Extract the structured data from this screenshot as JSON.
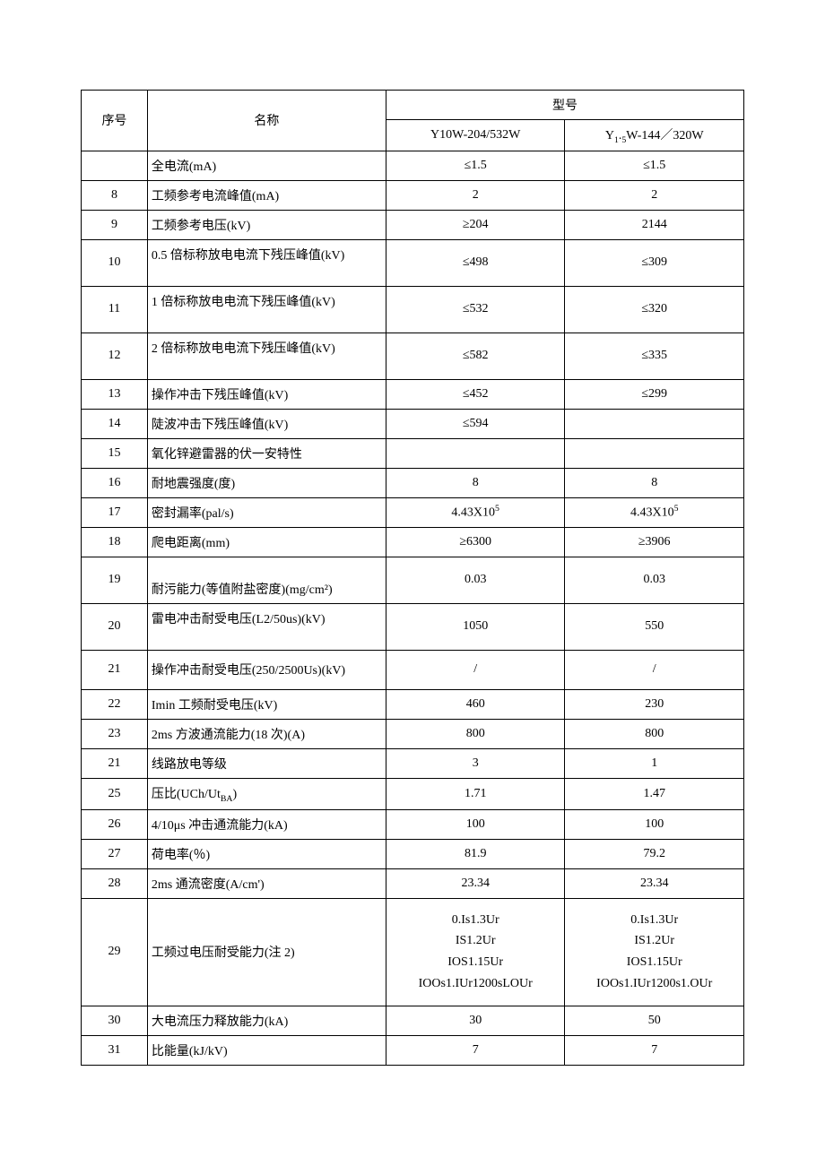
{
  "table": {
    "header": {
      "seq": "序号",
      "name": "名称",
      "model": "型号",
      "model_a": "Y10W-204/532W",
      "model_b": "Y₁.₅W-144／320W"
    },
    "rows": [
      {
        "seq": "",
        "name": "全电流(mA)",
        "a": "≤1.5",
        "b": "≤1.5"
      },
      {
        "seq": "8",
        "name": "工频参考电流峰值(mA)",
        "a": "2",
        "b": "2"
      },
      {
        "seq": "9",
        "name": "工频参考电压(kV)",
        "a": "≥204",
        "b": "2144"
      },
      {
        "seq": "10",
        "name": "0.5 倍标称放电电流下残压峰值(kV)",
        "a": "≤498",
        "b": "≤309",
        "tall_top": true
      },
      {
        "seq": "11",
        "name": "1 倍标称放电电流下残压峰值(kV)",
        "a": "≤532",
        "b": "≤320",
        "tall_top": true
      },
      {
        "seq": "12",
        "name": "2 倍标称放电电流下残压峰值(kV)",
        "a": "≤582",
        "b": "≤335",
        "tall_top": true
      },
      {
        "seq": "13",
        "name": "操作冲击下残压峰值(kV)",
        "a": "≤452",
        "b": "≤299"
      },
      {
        "seq": "14",
        "name": "陡波冲击下残压峰值(kV)",
        "a": "≤594",
        "b": ""
      },
      {
        "seq": "15",
        "name": "氧化锌避雷器的伏一安特性",
        "a": "",
        "b": ""
      },
      {
        "seq": "16",
        "name": "耐地震强度(度)",
        "a": "8",
        "b": "8"
      },
      {
        "seq": "17",
        "name": "密封漏率(pal/s)",
        "a": "4.43X10⁵",
        "b": "4.43X10⁵"
      },
      {
        "seq": "18",
        "name": "爬电距离(mm)",
        "a": "≥6300",
        "b": "≥3906"
      },
      {
        "seq": "19",
        "name": "耐污能力(等值附盐密度)(mg/cm²)",
        "a": "0.03",
        "b": "0.03",
        "tall_bottom": true
      },
      {
        "seq": "20",
        "name": "雷电冲击耐受电压(L2/50us)(kV)",
        "a": "1050",
        "b": "550",
        "tall_top": true
      },
      {
        "seq": "21",
        "name": "操作冲击耐受电压(250/2500Us)(kV)",
        "a": "/",
        "b": "/",
        "tall_mid": true
      },
      {
        "seq": "22",
        "name": "Imin 工频耐受电压(kV)",
        "a": "460",
        "b": "230"
      },
      {
        "seq": "23",
        "name": "2ms 方波通流能力(18 次)(A)",
        "a": "800",
        "b": "800"
      },
      {
        "seq": "21",
        "name": "线路放电等级",
        "a": "3",
        "b": "1"
      },
      {
        "seq": "25",
        "name": "压比(UCh/UtBA)",
        "a": "1.71",
        "b": "1.47",
        "subscript_BA": true
      },
      {
        "seq": "26",
        "name": "4/10μs 冲击通流能力(kA)",
        "a": "100",
        "b": "100"
      },
      {
        "seq": "27",
        "name": "荷电率(％)",
        "a": "81.9",
        "b": "79.2"
      },
      {
        "seq": "28",
        "name": "2ms 通流密度(A/cm')",
        "a": "23.34",
        "b": "23.34"
      },
      {
        "seq": "29",
        "name": "工频过电压耐受能力(注 2)",
        "a": "0.Is1.3Ur\nIS1.2Ur\nIOS1.15Ur\nIOOs1.IUr1200sLOUr",
        "b": "0.Is1.3Ur\nIS1.2Ur\nIOS1.15Ur\nIOOs1.IUr1200s1.OUr",
        "multiline": true
      },
      {
        "seq": "30",
        "name": "大电流压力释放能力(kA)",
        "a": "30",
        "b": "50"
      },
      {
        "seq": "31",
        "name": "比能量(kJ/kV)",
        "a": "7",
        "b": "7"
      }
    ]
  },
  "styling": {
    "background_color": "#ffffff",
    "text_color": "#000000",
    "border_color": "#000000",
    "font_family": "SimSun",
    "font_size": 14,
    "columns": [
      "序号",
      "名称",
      "型号A",
      "型号B"
    ],
    "column_widths_pct": [
      10,
      36,
      27,
      27
    ],
    "col_align": [
      "center",
      "left",
      "center",
      "center"
    ]
  }
}
